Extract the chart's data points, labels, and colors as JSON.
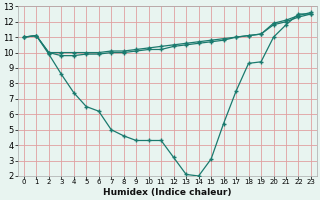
{
  "title": "",
  "xlabel": "Humidex (Indice chaleur)",
  "ylabel": "",
  "bg_color": "#e8f4f0",
  "grid_color": "#e0a0a0",
  "line_color": "#1a7a6e",
  "xlim": [
    -0.5,
    23.5
  ],
  "ylim": [
    2,
    13
  ],
  "xticks": [
    0,
    1,
    2,
    3,
    4,
    5,
    6,
    7,
    8,
    9,
    10,
    11,
    12,
    13,
    14,
    15,
    16,
    17,
    18,
    19,
    20,
    21,
    22,
    23
  ],
  "yticks": [
    2,
    3,
    4,
    5,
    6,
    7,
    8,
    9,
    10,
    11,
    12,
    13
  ],
  "line1_x": [
    0,
    1,
    2,
    3,
    4,
    5,
    6,
    7,
    8,
    9,
    10,
    11,
    12,
    13,
    14,
    15,
    16,
    17,
    18,
    19,
    20,
    21,
    22,
    23
  ],
  "line1_y": [
    11.0,
    11.1,
    9.9,
    8.6,
    7.4,
    6.5,
    6.2,
    5.0,
    4.6,
    4.3,
    4.3,
    4.3,
    3.2,
    2.1,
    2.0,
    3.1,
    5.4,
    7.5,
    9.3,
    9.4,
    11.0,
    11.8,
    12.5,
    12.5
  ],
  "line2_x": [
    0,
    1,
    2,
    3,
    4,
    5,
    6,
    7,
    8,
    9,
    10,
    11,
    12,
    13,
    14,
    15,
    16,
    17,
    18,
    19,
    20,
    21,
    22,
    23
  ],
  "line2_y": [
    11.0,
    11.1,
    10.0,
    10.0,
    10.0,
    10.0,
    10.0,
    10.1,
    10.1,
    10.2,
    10.3,
    10.4,
    10.5,
    10.6,
    10.7,
    10.8,
    10.9,
    11.0,
    11.1,
    11.2,
    11.8,
    12.0,
    12.3,
    12.5
  ],
  "line3_x": [
    0,
    1,
    2,
    3,
    4,
    5,
    6,
    7,
    8,
    9,
    10,
    11,
    12,
    13,
    14,
    15,
    16,
    17,
    18,
    19,
    20,
    21,
    22,
    23
  ],
  "line3_y": [
    11.0,
    11.1,
    10.0,
    9.8,
    9.8,
    9.9,
    9.9,
    10.0,
    10.0,
    10.1,
    10.2,
    10.2,
    10.4,
    10.5,
    10.6,
    10.7,
    10.8,
    11.0,
    11.1,
    11.2,
    11.9,
    12.1,
    12.4,
    12.6
  ]
}
